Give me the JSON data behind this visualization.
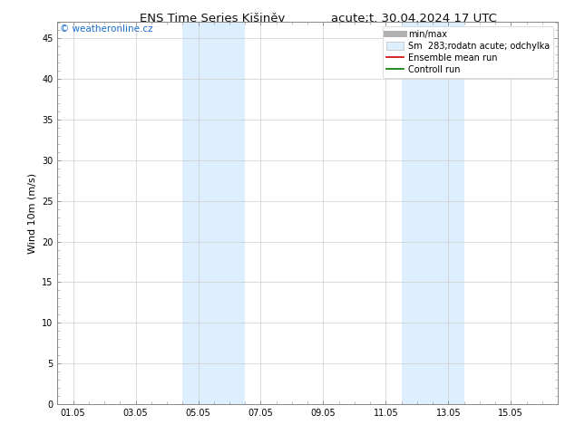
{
  "title_left": "ENS Time Series Kišiněv",
  "title_right": "acute;t. 30.04.2024 17 UTC",
  "watermark": "© weatheronline.cz",
  "ylabel": "Wind 10m (m/s)",
  "xtick_labels": [
    "01.05",
    "03.05",
    "05.05",
    "07.05",
    "09.05",
    "11.05",
    "13.05",
    "15.05"
  ],
  "xtick_positions": [
    0,
    2,
    4,
    6,
    8,
    10,
    12,
    14
  ],
  "xlim": [
    -0.5,
    15.5
  ],
  "ylim": [
    0,
    47
  ],
  "ytick_positions": [
    0,
    5,
    10,
    15,
    20,
    25,
    30,
    35,
    40,
    45
  ],
  "shaded_regions": [
    {
      "xstart": 3.5,
      "xend": 5.5
    },
    {
      "xstart": 10.5,
      "xend": 12.5
    }
  ],
  "shaded_color": "#ddeeff",
  "legend_entries": [
    {
      "label": "min/max",
      "color": "#b0b0b0",
      "type": "line",
      "lw": 5
    },
    {
      "label": "Sm  283;rodatn acute; odchylka",
      "color": "#ddeeff",
      "type": "box"
    },
    {
      "label": "Ensemble mean run",
      "color": "#cc0000",
      "type": "line",
      "lw": 1.2
    },
    {
      "label": "Controll run",
      "color": "#007700",
      "type": "line",
      "lw": 1.2
    }
  ],
  "bg_color": "#ffffff",
  "plot_bg_color": "#ffffff",
  "grid_color": "#cccccc",
  "title_fontsize": 9.5,
  "tick_fontsize": 7,
  "label_fontsize": 8,
  "legend_fontsize": 7,
  "watermark_color": "#1a6fcc",
  "watermark_fontsize": 7.5,
  "spine_color": "#888888"
}
